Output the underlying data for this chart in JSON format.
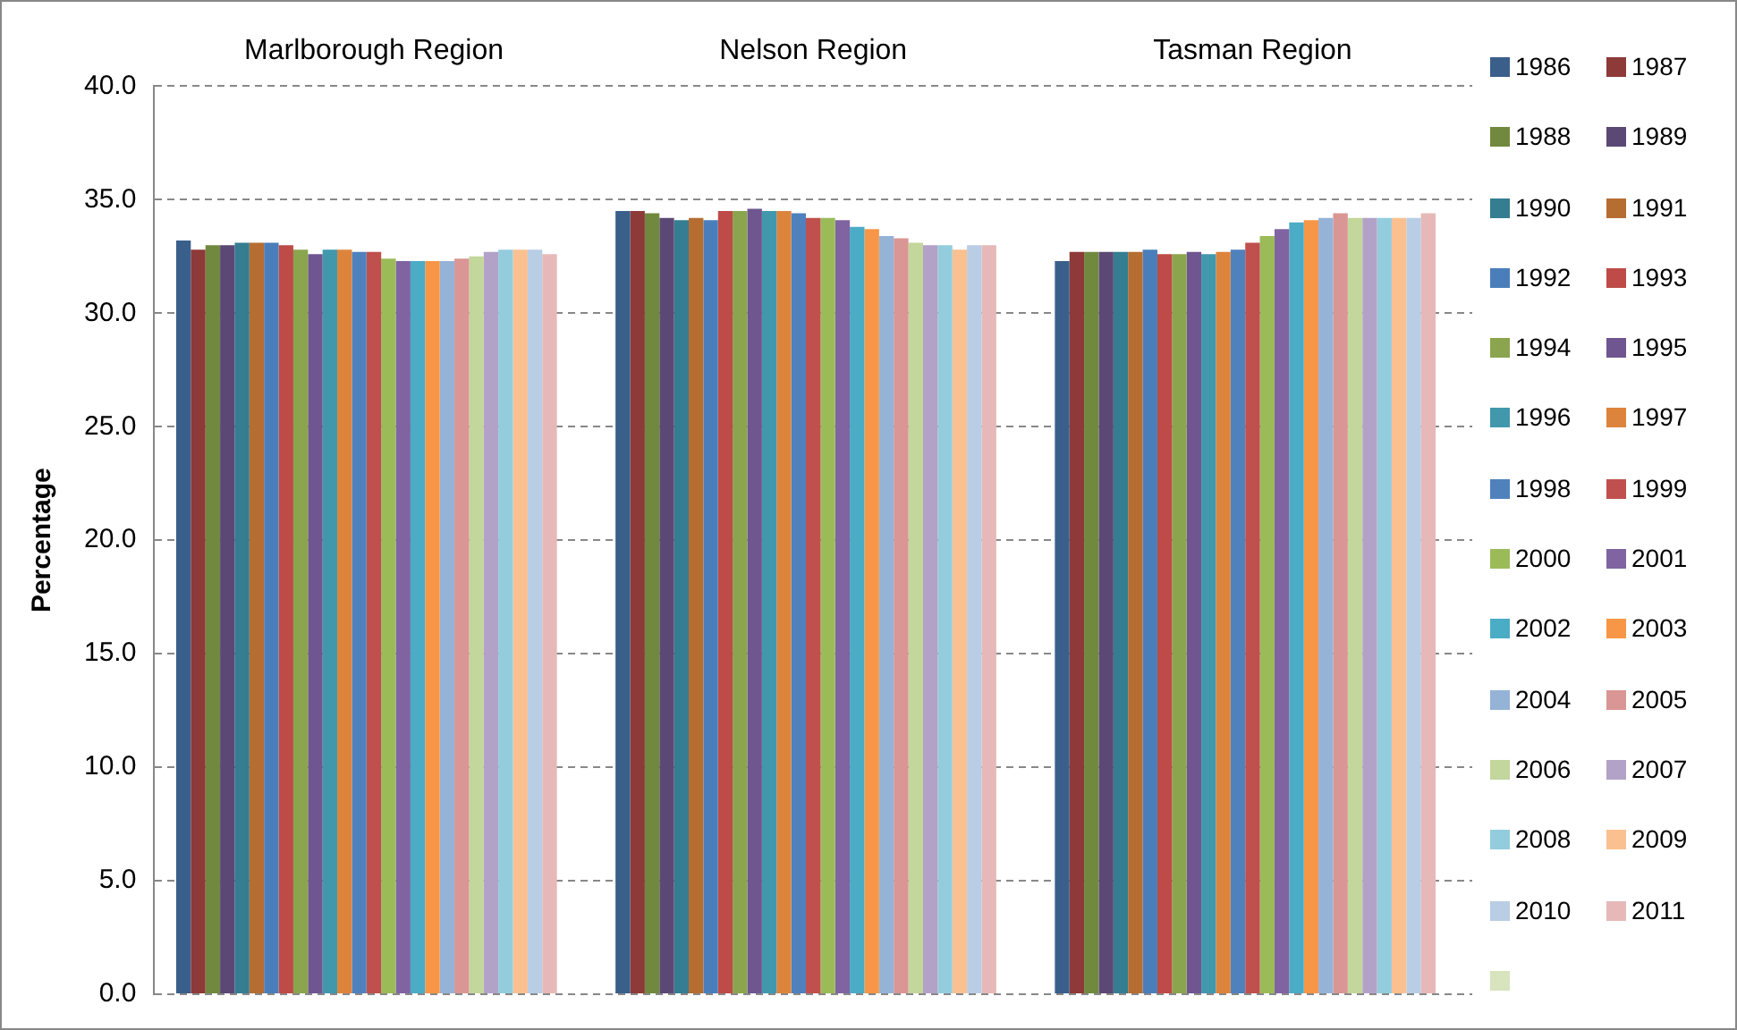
{
  "chart_data": {
    "type": "bar",
    "ylabel": "Percentage",
    "categories": [
      "Marlborough Region",
      "Nelson Region",
      "Tasman Region"
    ],
    "ylim": [
      0,
      40
    ],
    "yticks": [
      {
        "value": 0,
        "label": "0.0"
      },
      {
        "value": 5,
        "label": "5.0"
      },
      {
        "value": 10,
        "label": "10.0"
      },
      {
        "value": 15,
        "label": "15.0"
      },
      {
        "value": 20,
        "label": "20.0"
      },
      {
        "value": 25,
        "label": "25.0"
      },
      {
        "value": 30,
        "label": "30.0"
      },
      {
        "value": 35,
        "label": "35.0"
      },
      {
        "value": 40,
        "label": "40.0"
      }
    ],
    "grid": "y",
    "legend": "right",
    "series": [
      {
        "name": "1986",
        "color": "#3a5f8b",
        "values": [
          33.2,
          34.5,
          32.3
        ]
      },
      {
        "name": "1987",
        "color": "#8d3a38",
        "values": [
          32.8,
          34.5,
          32.7
        ]
      },
      {
        "name": "1988",
        "color": "#71893f",
        "values": [
          33.0,
          34.4,
          32.7
        ]
      },
      {
        "name": "1989",
        "color": "#5c4875",
        "values": [
          33.0,
          34.2,
          32.7
        ]
      },
      {
        "name": "1990",
        "color": "#357d91",
        "values": [
          33.1,
          34.1,
          32.7
        ]
      },
      {
        "name": "1991",
        "color": "#b66d31",
        "values": [
          33.1,
          34.2,
          32.7
        ]
      },
      {
        "name": "1992",
        "color": "#4a7ebb",
        "values": [
          33.1,
          34.1,
          32.8
        ]
      },
      {
        "name": "1993",
        "color": "#be4b48",
        "values": [
          33.0,
          34.5,
          32.6
        ]
      },
      {
        "name": "1994",
        "color": "#8aa54d",
        "values": [
          32.8,
          34.5,
          32.6
        ]
      },
      {
        "name": "1995",
        "color": "#6f5690",
        "values": [
          32.6,
          34.6,
          32.7
        ]
      },
      {
        "name": "1996",
        "color": "#4198ad",
        "values": [
          32.8,
          34.5,
          32.6
        ]
      },
      {
        "name": "1997",
        "color": "#dd843c",
        "values": [
          32.8,
          34.5,
          32.7
        ]
      },
      {
        "name": "1998",
        "color": "#4f81bd",
        "values": [
          32.7,
          34.4,
          32.8
        ]
      },
      {
        "name": "1999",
        "color": "#c0504d",
        "values": [
          32.7,
          34.2,
          33.1
        ]
      },
      {
        "name": "2000",
        "color": "#9bbb59",
        "values": [
          32.4,
          34.2,
          33.4
        ]
      },
      {
        "name": "2001",
        "color": "#8064a2",
        "values": [
          32.3,
          34.1,
          33.7
        ]
      },
      {
        "name": "2002",
        "color": "#4bacc6",
        "values": [
          32.3,
          33.8,
          34.0
        ]
      },
      {
        "name": "2003",
        "color": "#f79646",
        "values": [
          32.3,
          33.7,
          34.1
        ]
      },
      {
        "name": "2004",
        "color": "#95b3d7",
        "values": [
          32.3,
          33.4,
          34.2
        ]
      },
      {
        "name": "2005",
        "color": "#d99694",
        "values": [
          32.4,
          33.3,
          34.4
        ]
      },
      {
        "name": "2006",
        "color": "#c3d69b",
        "values": [
          32.5,
          33.1,
          34.2
        ]
      },
      {
        "name": "2007",
        "color": "#b3a2c7",
        "values": [
          32.7,
          33.0,
          34.2
        ]
      },
      {
        "name": "2008",
        "color": "#93cddd",
        "values": [
          32.8,
          33.0,
          34.2
        ]
      },
      {
        "name": "2009",
        "color": "#fac090",
        "values": [
          32.8,
          32.8,
          34.2
        ]
      },
      {
        "name": "2010",
        "color": "#b9cde5",
        "values": [
          32.8,
          33.0,
          34.2
        ]
      },
      {
        "name": "2011",
        "color": "#e6b9b8",
        "values": [
          32.6,
          33.0,
          34.4
        ]
      },
      {
        "color": "#d7e4bd",
        "values": [
          null,
          null,
          null
        ]
      }
    ]
  }
}
